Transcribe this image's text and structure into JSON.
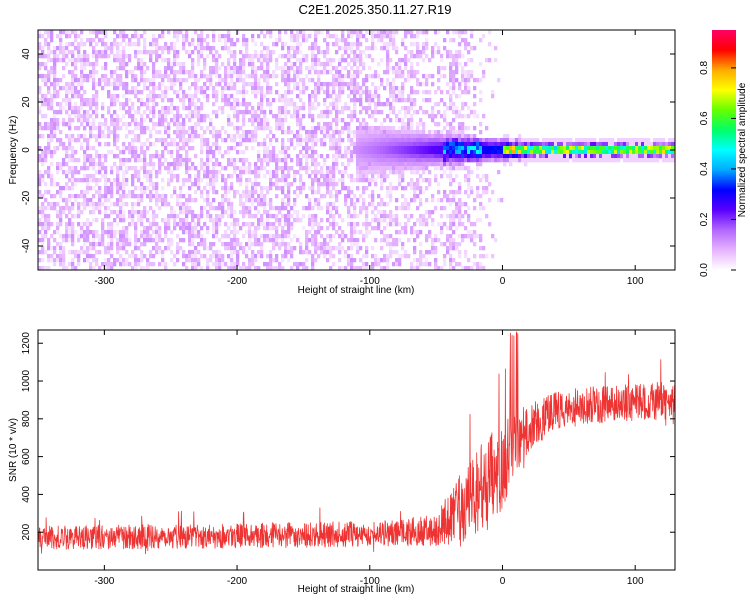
{
  "title": "C2E1.2025.350.11.27.R19",
  "chart_data": [
    {
      "type": "heatmap",
      "xlabel": "Height of straight line (km)",
      "ylabel": "Frequency (Hz)",
      "xlim": [
        -350,
        130
      ],
      "ylim": [
        -50,
        50
      ],
      "xticks": [
        -300,
        -200,
        -100,
        0,
        100
      ],
      "yticks": [
        -40,
        -20,
        0,
        20,
        40
      ],
      "colorbar": {
        "label": "Normalized spectral amplitude",
        "range": [
          0.0,
          0.95
        ],
        "ticks": [
          "0.0",
          "0.2",
          "0.4",
          "0.6",
          "0.8"
        ],
        "tick_values": [
          0.0,
          0.2,
          0.4,
          0.6,
          0.8
        ],
        "colors": [
          "#ffffff",
          "#e6b3ff",
          "#b266ff",
          "#5a00ff",
          "#0000ff",
          "#00aaff",
          "#00ffff",
          "#00ff66",
          "#66ff00",
          "#ffff00",
          "#ffaa00",
          "#ff0000",
          "#ff0066"
        ]
      },
      "features": {
        "noise_region_x": [
          -350,
          -40
        ],
        "noise_level": 0.06,
        "fade_region_x": [
          -40,
          0
        ],
        "signal_onset_x": -110,
        "signal_band_hz": [
          -3,
          3
        ],
        "signal_peak_amplitude": 0.95
      }
    },
    {
      "type": "line",
      "xlabel": "Height of straight line (km)",
      "ylabel": "SNR (10 * v/v)",
      "xlim": [
        -350,
        130
      ],
      "ylim": [
        0,
        1270
      ],
      "xticks": [
        -300,
        -200,
        -100,
        0,
        100
      ],
      "yticks": [
        200,
        400,
        600,
        800,
        1000,
        1200
      ],
      "color": "#ee3333",
      "profile": {
        "x": [
          -350,
          -100,
          -50,
          -30,
          -15,
          0,
          8,
          20,
          40,
          60,
          130
        ],
        "mean": [
          170,
          190,
          210,
          330,
          420,
          560,
          660,
          760,
          840,
          870,
          900
        ],
        "spread": [
          70,
          75,
          90,
          230,
          280,
          260,
          200,
          150,
          120,
          110,
          110
        ]
      }
    }
  ]
}
